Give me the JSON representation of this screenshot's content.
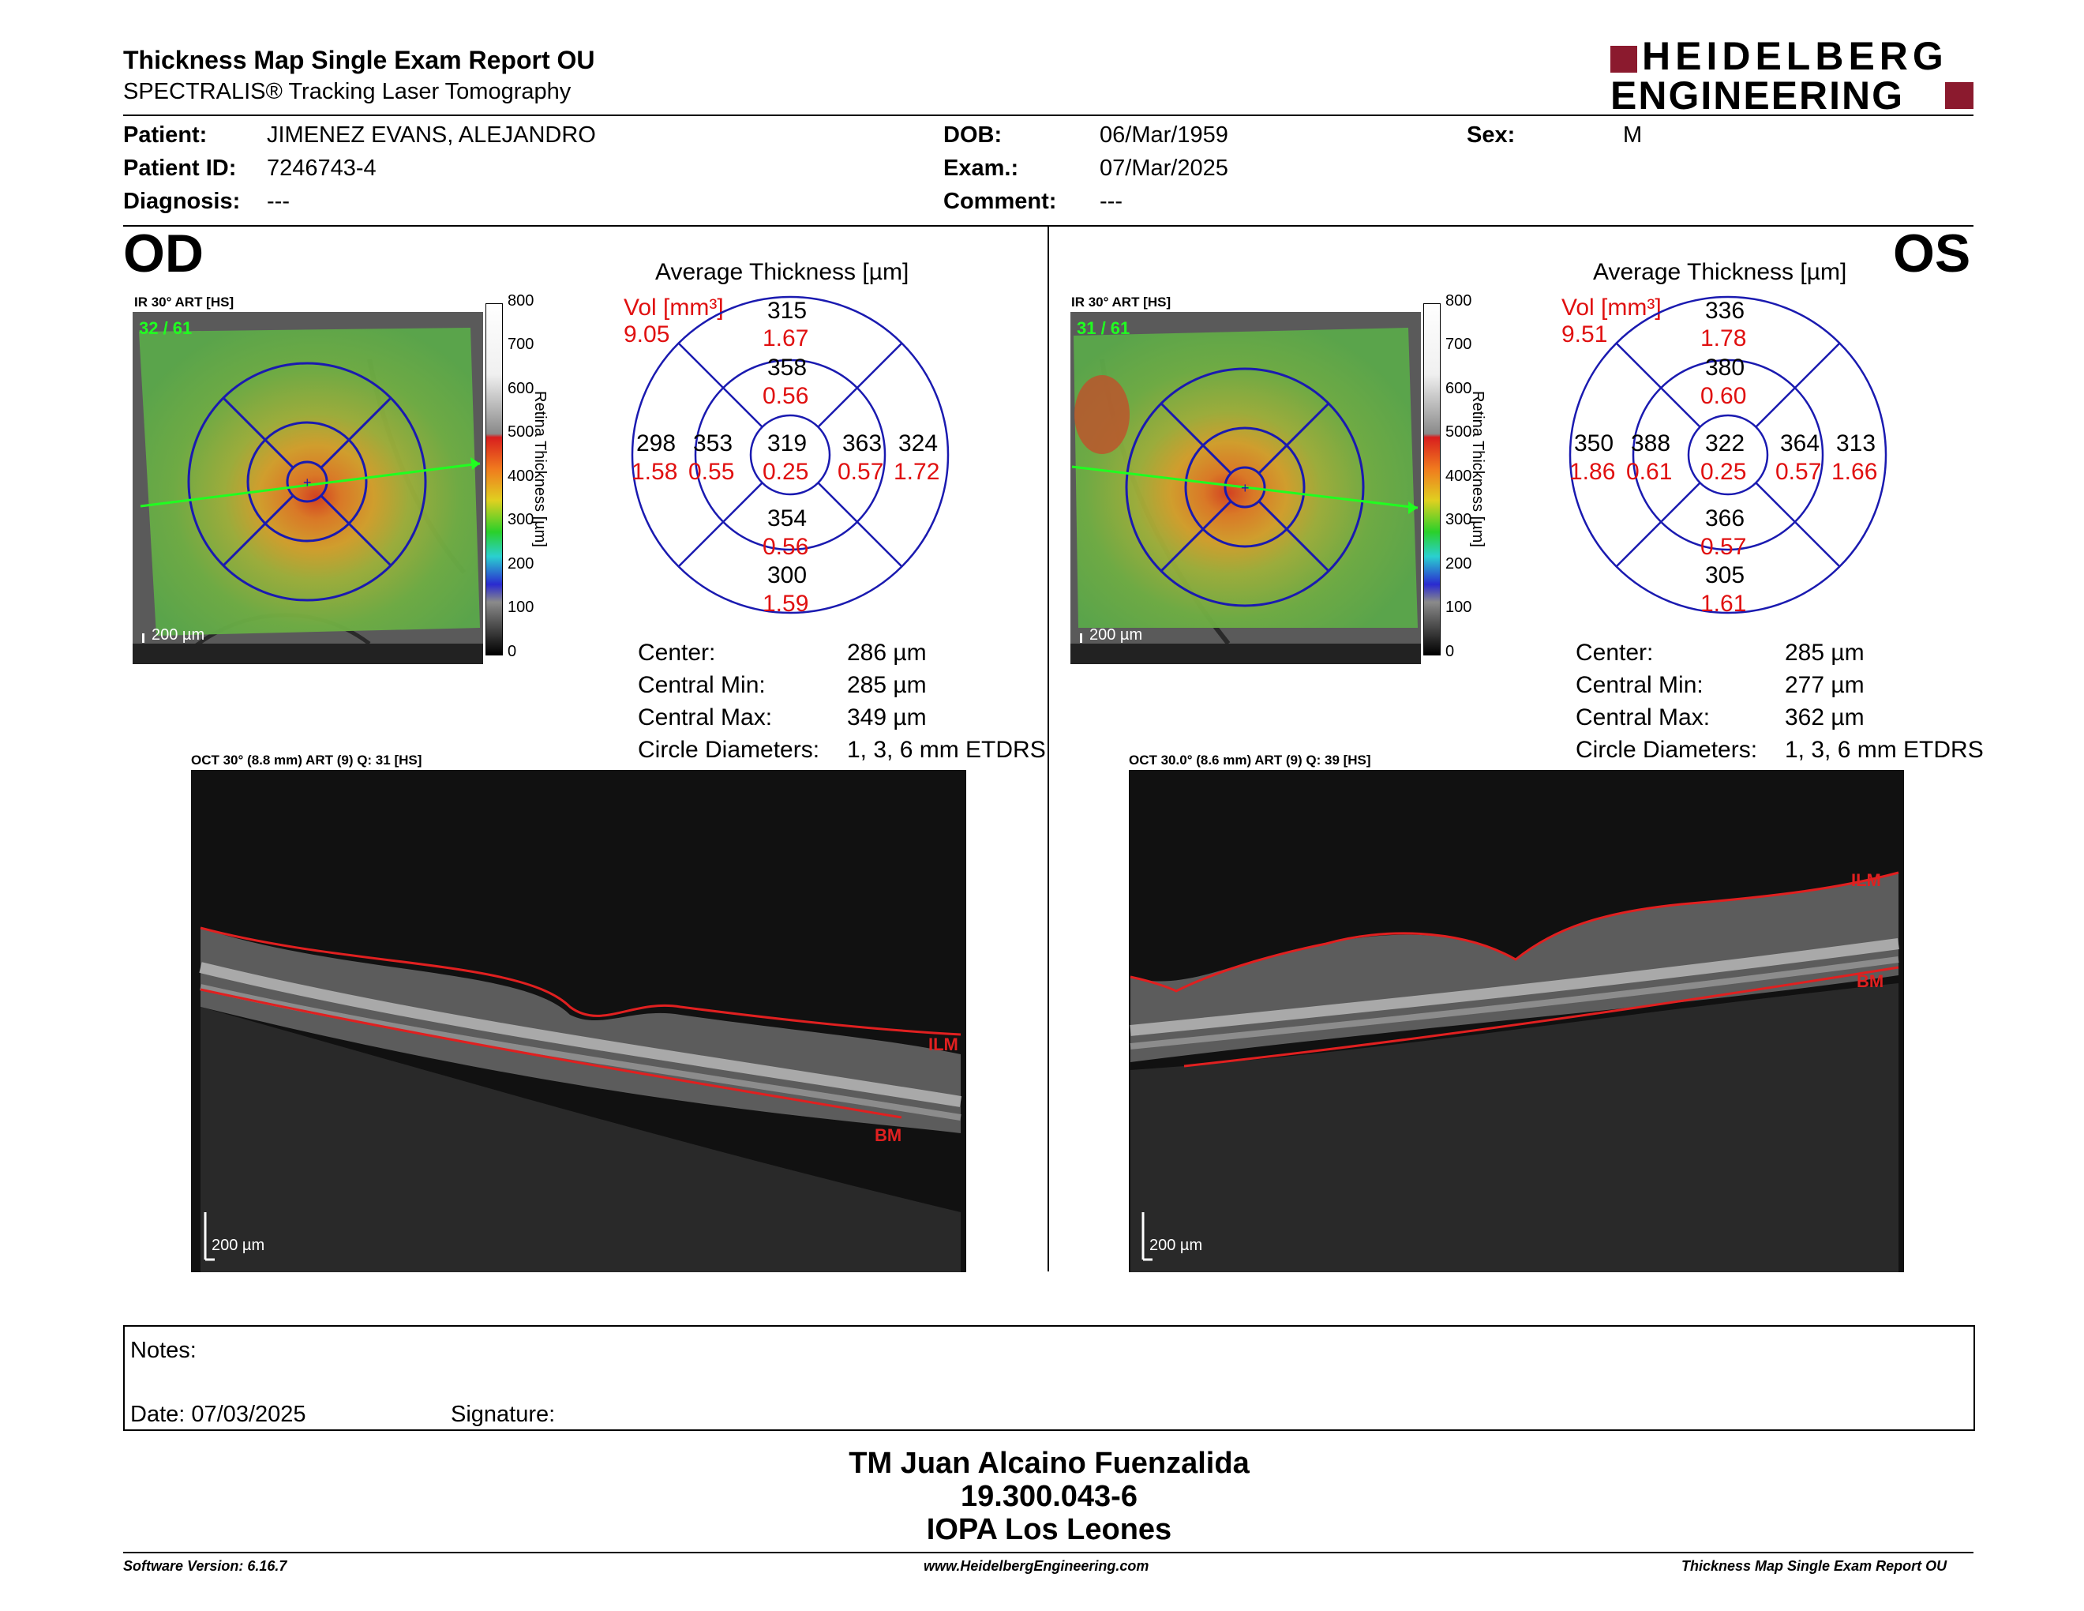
{
  "header": {
    "title": "Thickness Map Single Exam Report OU",
    "subtitle": "SPECTRALIS® Tracking Laser Tomography",
    "logo_line1": "HEIDELBERG",
    "logo_line2": "ENGINEERING",
    "logo_color": "#8b1a2e"
  },
  "patient": {
    "patient_label": "Patient:",
    "patient_value": "JIMENEZ EVANS, ALEJANDRO",
    "id_label": "Patient ID:",
    "id_value": "7246743-4",
    "diag_label": "Diagnosis:",
    "diag_value": "---",
    "dob_label": "DOB:",
    "dob_value": "06/Mar/1959",
    "exam_label": "Exam.:",
    "exam_value": "07/Mar/2025",
    "comment_label": "Comment:",
    "comment_value": "---",
    "sex_label": "Sex:",
    "sex_value": "M"
  },
  "od": {
    "eye": "OD",
    "ir_label": "IR 30° ART [HS]",
    "ir_counter": "32 / 61",
    "ir_scale": "200 µm",
    "colorbar_title": "Retina Thickness [µm]",
    "colorbar_ticks": [
      "800",
      "700",
      "600",
      "500",
      "400",
      "300",
      "200",
      "100",
      "0"
    ],
    "avg_title": "Average Thickness [µm]",
    "vol_label": "Vol [mm³]",
    "vol_value": "9.05",
    "grid": {
      "sup_outer_t": "315",
      "sup_outer_v": "1.67",
      "sup_inner_t": "358",
      "sup_inner_v": "0.56",
      "center_t": "319",
      "center_v": "0.25",
      "nas_inner_t": "353",
      "nas_inner_v": "0.55",
      "nas_outer_t": "298",
      "nas_outer_v": "1.58",
      "temp_inner_t": "363",
      "temp_inner_v": "0.57",
      "temp_outer_t": "324",
      "temp_outer_v": "1.72",
      "inf_inner_t": "354",
      "inf_inner_v": "0.56",
      "inf_outer_t": "300",
      "inf_outer_v": "1.59"
    },
    "stats": {
      "center_label": "Center:",
      "center_value": "286 µm",
      "cmin_label": "Central Min:",
      "cmin_value": "285 µm",
      "cmax_label": "Central Max:",
      "cmax_value": "349 µm",
      "circ_label": "Circle Diameters:",
      "circ_value": "1, 3, 6 mm ETDRS"
    },
    "oct_label": "OCT 30° (8.8 mm) ART (9) Q: 31 [HS]",
    "oct_ilm": "ILM",
    "oct_bm": "BM",
    "oct_scale": "200 µm"
  },
  "os": {
    "eye": "OS",
    "ir_label": "IR 30° ART [HS]",
    "ir_counter": "31 / 61",
    "ir_scale": "200 µm",
    "colorbar_title": "Retina Thickness [µm]",
    "colorbar_ticks": [
      "800",
      "700",
      "600",
      "500",
      "400",
      "300",
      "200",
      "100",
      "0"
    ],
    "avg_title": "Average Thickness [µm]",
    "vol_label": "Vol [mm³]",
    "vol_value": "9.51",
    "grid": {
      "sup_outer_t": "336",
      "sup_outer_v": "1.78",
      "sup_inner_t": "380",
      "sup_inner_v": "0.60",
      "center_t": "322",
      "center_v": "0.25",
      "nas_inner_t": "388",
      "nas_inner_v": "0.61",
      "nas_outer_t": "350",
      "nas_outer_v": "1.86",
      "temp_inner_t": "364",
      "temp_inner_v": "0.57",
      "temp_outer_t": "313",
      "temp_outer_v": "1.66",
      "inf_inner_t": "366",
      "inf_inner_v": "0.57",
      "inf_outer_t": "305",
      "inf_outer_v": "1.61"
    },
    "stats": {
      "center_label": "Center:",
      "center_value": "285 µm",
      "cmin_label": "Central Min:",
      "cmin_value": "277 µm",
      "cmax_label": "Central Max:",
      "cmax_value": "362 µm",
      "circ_label": "Circle Diameters:",
      "circ_value": "1, 3, 6 mm ETDRS"
    },
    "oct_label": "OCT 30.0° (8.6 mm) ART (9) Q: 39 [HS]",
    "oct_ilm": "ILM",
    "oct_bm": "BM",
    "oct_scale": "200 µm"
  },
  "notes": {
    "notes_label": "Notes:",
    "date_label": "Date: 07/03/2025",
    "signature_label": "Signature:"
  },
  "signature": {
    "line1": "TM Juan Alcaino Fuenzalida",
    "line2": "19.300.043-6",
    "line3": "IOPA Los Leones"
  },
  "footer": {
    "software": "Software Version: 6.16.7",
    "website": "www.HeidelbergEngineering.com",
    "report": "Thickness Map Single Exam Report OU"
  },
  "colors": {
    "grid_blue": "#1a1ab0",
    "red": "#e01010",
    "ilm_red": "#e02020",
    "green_line": "#20ff20"
  }
}
